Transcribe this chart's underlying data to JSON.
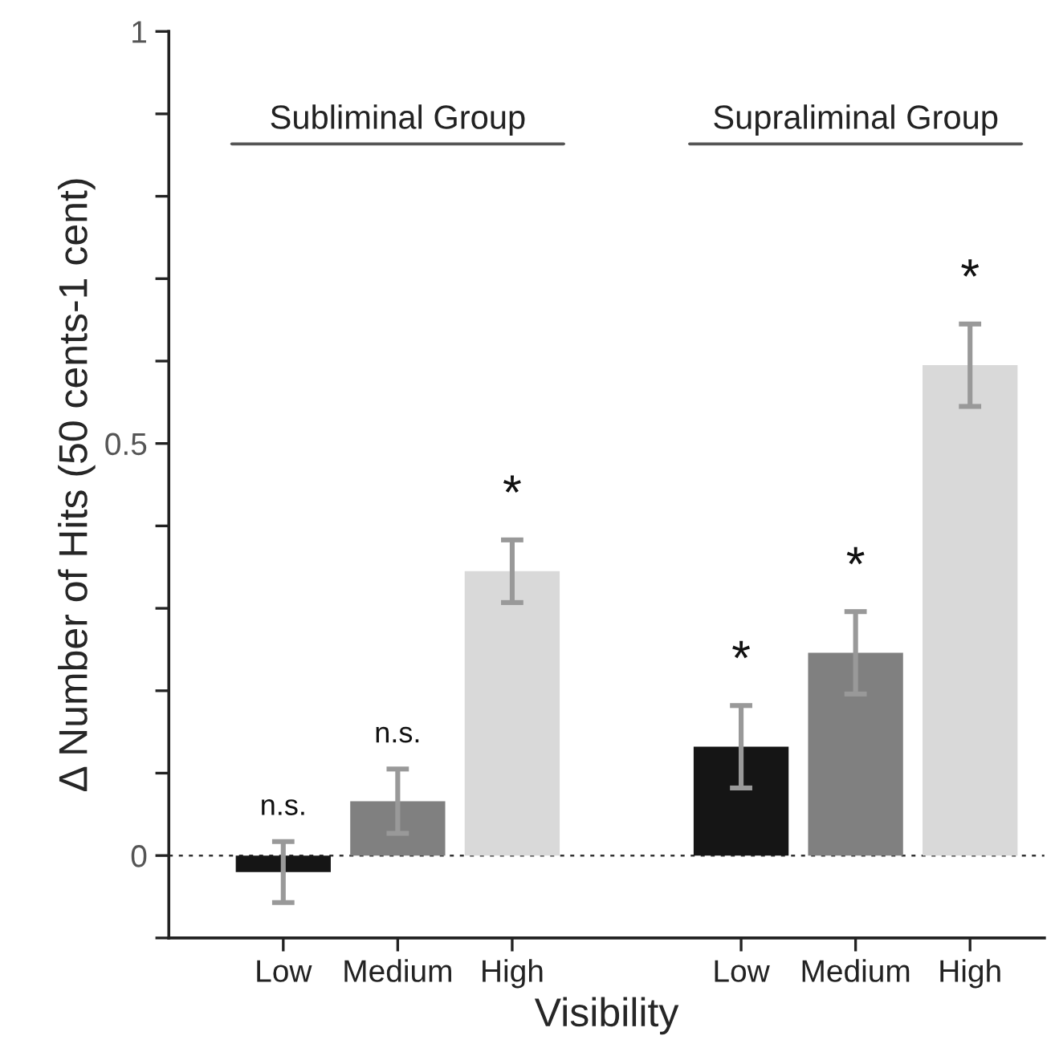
{
  "chart_data": {
    "type": "bar",
    "xlabel": "Visibility",
    "ylabel": "Δ Number of Hits (50 cents-1 cent)",
    "categories": [
      "Low",
      "Medium",
      "High",
      null,
      "Low",
      "Medium",
      "High"
    ],
    "values": [
      -0.02,
      0.066,
      0.345,
      null,
      0.132,
      0.246,
      0.595
    ],
    "errors": [
      0.037,
      0.039,
      0.038,
      null,
      0.05,
      0.05,
      0.05
    ],
    "colors": [
      "#151515",
      "#808080",
      "#d9d9d9",
      "#ffffff",
      "#151515",
      "#808080",
      "#d9d9d9"
    ],
    "ylim": [
      -0.1,
      1
    ],
    "yticks": [
      {
        "value": -0.1,
        "label": null
      },
      0,
      {
        "value": 0.1,
        "label": null
      },
      {
        "value": 0.2,
        "label": null
      },
      {
        "value": 0.3,
        "label": null
      },
      {
        "value": 0.4,
        "label": null
      },
      0.5,
      {
        "value": 0.6,
        "label": null
      },
      {
        "value": 0.7,
        "label": null
      },
      {
        "value": 0.8,
        "label": null
      },
      {
        "value": 0.9,
        "label": null
      },
      1
    ],
    "ref_lines": [
      {
        "axis": "y",
        "value": 0,
        "color": "#333333",
        "line_style": "dotted"
      }
    ],
    "annotations": [
      "Subliminal Group",
      "Supraliminal Group",
      "n.s.",
      "n.s.",
      "*",
      "*",
      "*",
      "*"
    ],
    "grid": false
  }
}
